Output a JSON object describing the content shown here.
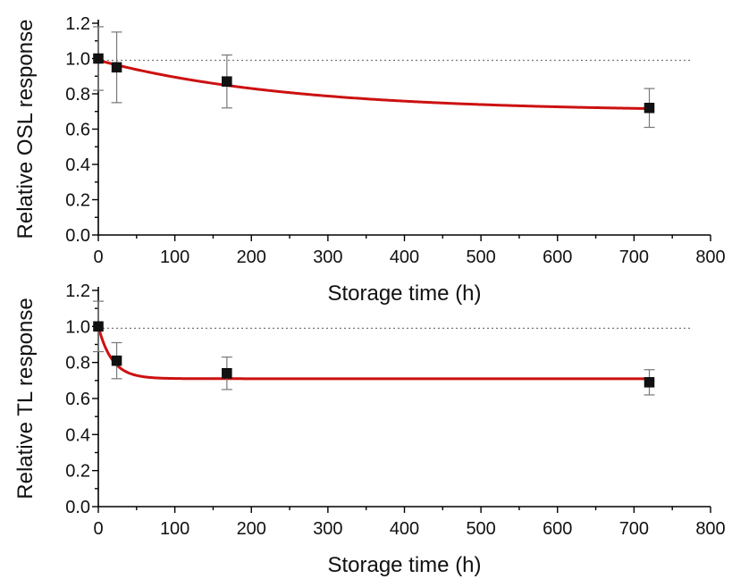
{
  "colors": {
    "fit": "#cc1111",
    "points": "#111111",
    "errorbars": "#777777",
    "reference": "#888888"
  },
  "chart_data": [
    {
      "type": "scatter",
      "xlabel": "Storage time (h)",
      "ylabel": "Relative OSL response",
      "xlim": [
        0,
        800
      ],
      "ylim": [
        0,
        1.2
      ],
      "xticks": [
        "0",
        "100",
        "200",
        "300",
        "400",
        "500",
        "600",
        "700",
        "800"
      ],
      "yticks": [
        "0.0",
        "0.2",
        "0.4",
        "0.6",
        "0.8",
        "1.0",
        "1.2"
      ],
      "grid": false,
      "reference_y": 0.99,
      "series": [
        {
          "points": [
            {
              "x": 0,
              "y": 1.0,
              "err": 0.18
            },
            {
              "x": 24,
              "y": 0.95,
              "err": 0.2
            },
            {
              "x": 168,
              "y": 0.87,
              "err": 0.15
            },
            {
              "x": 720,
              "y": 0.72,
              "err": 0.11
            }
          ],
          "fit": {
            "model": "exponential decay",
            "y0": 0.7,
            "A": 0.29,
            "tau": 250
          }
        }
      ]
    },
    {
      "type": "scatter",
      "xlabel": "Storage time (h)",
      "ylabel": "Relative TL response",
      "xlim": [
        0,
        800
      ],
      "ylim": [
        0,
        1.2
      ],
      "xticks": [
        "0",
        "100",
        "200",
        "300",
        "400",
        "500",
        "600",
        "700",
        "800"
      ],
      "yticks": [
        "0.0",
        "0.2",
        "0.4",
        "0.6",
        "0.8",
        "1.0",
        "1.2"
      ],
      "grid": false,
      "reference_y": 0.99,
      "series": [
        {
          "points": [
            {
              "x": 0,
              "y": 1.0,
              "err": 0.14
            },
            {
              "x": 24,
              "y": 0.81,
              "err": 0.1
            },
            {
              "x": 168,
              "y": 0.74,
              "err": 0.09
            },
            {
              "x": 720,
              "y": 0.69,
              "err": 0.07
            }
          ],
          "fit": {
            "model": "exponential decay",
            "y0": 0.71,
            "A": 0.29,
            "tau": 18
          }
        }
      ]
    }
  ]
}
